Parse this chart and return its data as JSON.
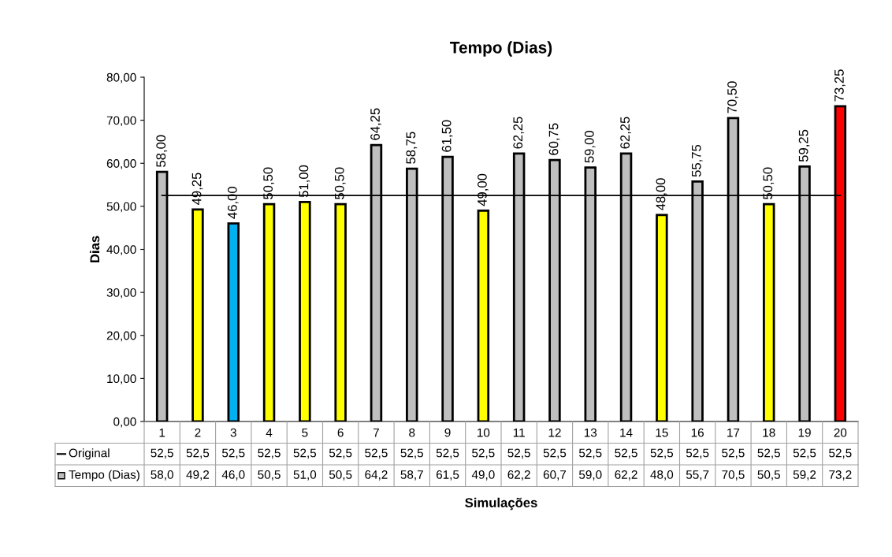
{
  "chart_data": {
    "type": "bar",
    "title": "Tempo (Dias)",
    "xlabel": "Simulações",
    "ylabel": "Dias",
    "categories": [
      "1",
      "2",
      "3",
      "4",
      "5",
      "6",
      "7",
      "8",
      "9",
      "10",
      "11",
      "12",
      "13",
      "14",
      "15",
      "16",
      "17",
      "18",
      "19",
      "20"
    ],
    "series": [
      {
        "name": "Original",
        "type": "line",
        "color": "#000000",
        "values": [
          52.5,
          52.5,
          52.5,
          52.5,
          52.5,
          52.5,
          52.5,
          52.5,
          52.5,
          52.5,
          52.5,
          52.5,
          52.5,
          52.5,
          52.5,
          52.5,
          52.5,
          52.5,
          52.5,
          52.5
        ],
        "value_labels": [
          "52,5",
          "52,5",
          "52,5",
          "52,5",
          "52,5",
          "52,5",
          "52,5",
          "52,5",
          "52,5",
          "52,5",
          "52,5",
          "52,5",
          "52,5",
          "52,5",
          "52,5",
          "52,5",
          "52,5",
          "52,5",
          "52,5",
          "52,5"
        ]
      },
      {
        "name": "Tempo (Dias)",
        "values": [
          58,
          49.25,
          46,
          50.5,
          51,
          50.5,
          64.25,
          58.75,
          61.5,
          49,
          62.25,
          60.75,
          59,
          62.25,
          48,
          55.75,
          70.5,
          50.5,
          59.25,
          73.25
        ],
        "colors": [
          "#bfbfbf",
          "#ffff00",
          "#00b0f0",
          "#ffff00",
          "#ffff00",
          "#ffff00",
          "#bfbfbf",
          "#bfbfbf",
          "#bfbfbf",
          "#ffff00",
          "#bfbfbf",
          "#bfbfbf",
          "#bfbfbf",
          "#bfbfbf",
          "#ffff00",
          "#bfbfbf",
          "#bfbfbf",
          "#ffff00",
          "#bfbfbf",
          "#ff0000"
        ],
        "value_labels": [
          "58,00",
          "49,25",
          "46,00",
          "50,50",
          "51,00",
          "50,50",
          "64,25",
          "58,75",
          "61,50",
          "49,00",
          "62,25",
          "60,75",
          "59,00",
          "62,25",
          "48,00",
          "55,75",
          "70,50",
          "50,50",
          "59,25",
          "73,25"
        ]
      }
    ],
    "annotations": [
      "58,0",
      "49,2",
      "46,0",
      "50,5",
      "51,0",
      "50,5",
      "64,2",
      "58,7",
      "61,5",
      "49,0",
      "62,2",
      "60,7",
      "59,0",
      "62,2",
      "48,0",
      "55,7",
      "70,5",
      "50,5",
      "59,2",
      "73,2"
    ],
    "ylim": [
      0,
      80
    ],
    "yticks": [
      {
        "value": 0,
        "label": "0,00"
      },
      {
        "value": 10,
        "label": "10,00"
      },
      {
        "value": 20,
        "label": "20,00"
      },
      {
        "value": 30,
        "label": "30,00"
      },
      {
        "value": 40,
        "label": "40,00"
      },
      {
        "value": 50,
        "label": "50,00"
      },
      {
        "value": 60,
        "label": "60,00"
      },
      {
        "value": 70,
        "label": "70,00"
      },
      {
        "value": 80,
        "label": "80,00"
      }
    ],
    "grid": false,
    "legend": "bottom left"
  }
}
